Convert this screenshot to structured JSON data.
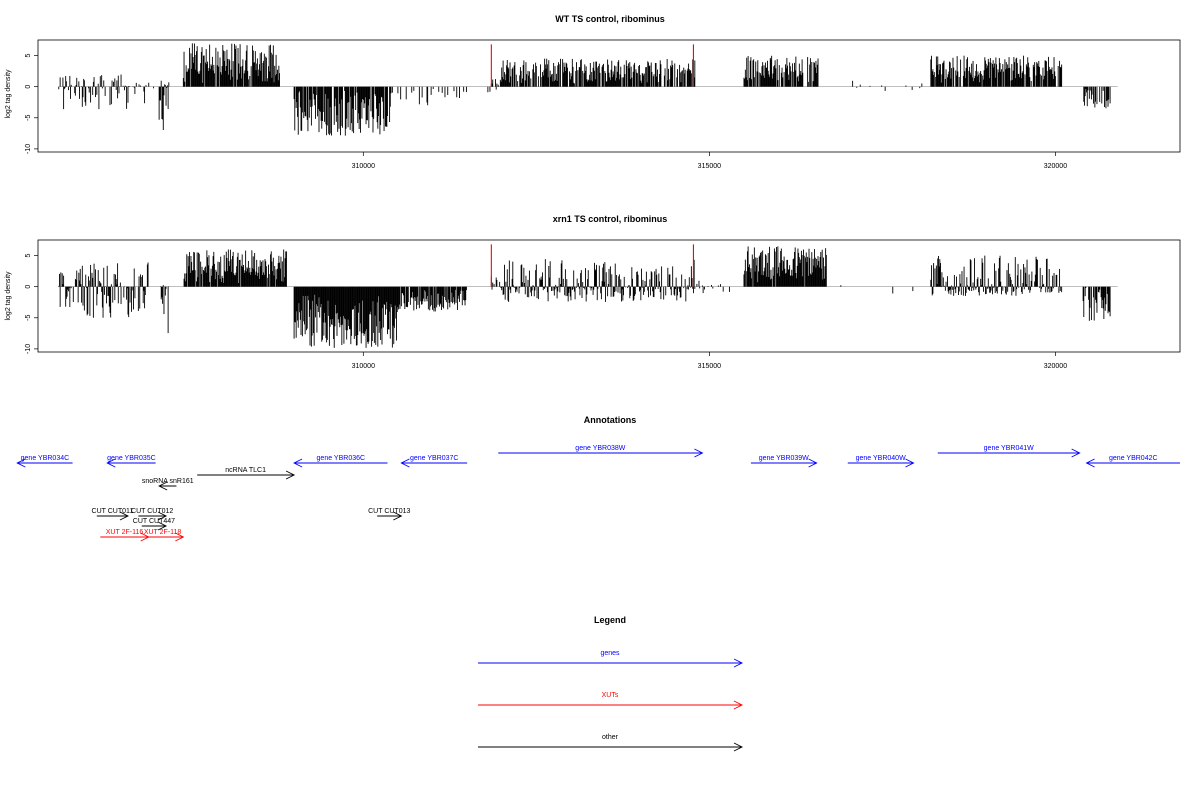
{
  "chart_data": [
    {
      "type": "bar",
      "title": "WT TS control, ribominus",
      "ylabel": "log2 tag density",
      "xlabel": "",
      "xlim": [
        305300,
        321800
      ],
      "ylim": [
        -10.5,
        7.5
      ],
      "xticks": [
        310000,
        315000,
        320000
      ],
      "yticks": [
        -10,
        -5,
        0,
        5
      ],
      "grid": false,
      "segments": [
        {
          "start": 305600,
          "end": 306600,
          "lo": -4.0,
          "hi": 2.0,
          "density": 0.55
        },
        {
          "start": 306600,
          "end": 307000,
          "lo": -3.0,
          "hi": 1.0,
          "density": 0.4
        },
        {
          "start": 307050,
          "end": 307200,
          "lo": -7.0,
          "hi": 1.0,
          "density": 0.8
        },
        {
          "start": 307400,
          "end": 308800,
          "lo": 0.5,
          "hi": 7.0,
          "density": 0.9
        },
        {
          "start": 309000,
          "end": 310400,
          "lo": -8.0,
          "hi": -0.5,
          "density": 0.9
        },
        {
          "start": 310400,
          "end": 311500,
          "lo": -3.0,
          "hi": 0.0,
          "density": 0.25
        },
        {
          "start": 311800,
          "end": 312000,
          "lo": -1.0,
          "hi": 1.5,
          "density": 0.5
        },
        {
          "start": 312000,
          "end": 314800,
          "lo": 0.5,
          "hi": 4.5,
          "density": 0.75
        },
        {
          "start": 315500,
          "end": 316600,
          "lo": 0.5,
          "hi": 5.0,
          "density": 0.75
        },
        {
          "start": 316600,
          "end": 318100,
          "lo": -1.0,
          "hi": 1.0,
          "density": 0.05
        },
        {
          "start": 318200,
          "end": 320100,
          "lo": 0.5,
          "hi": 5.0,
          "density": 0.85
        },
        {
          "start": 320400,
          "end": 320800,
          "lo": -3.5,
          "hi": 0.0,
          "density": 0.7
        }
      ],
      "red_markers": [
        {
          "x": 311850,
          "y": 6.8
        },
        {
          "x": 314770,
          "y": 6.8
        }
      ]
    },
    {
      "type": "bar",
      "title": "xrn1 TS control, ribominus",
      "ylabel": "log2 tag density",
      "xlabel": "",
      "xlim": [
        305300,
        321800
      ],
      "ylim": [
        -10.5,
        7.5
      ],
      "xticks": [
        310000,
        315000,
        320000
      ],
      "yticks": [
        -10,
        -5,
        0,
        5
      ],
      "grid": false,
      "segments": [
        {
          "start": 305600,
          "end": 306900,
          "lo": -5.0,
          "hi": 4.0,
          "density": 0.8
        },
        {
          "start": 307050,
          "end": 307200,
          "lo": -7.5,
          "hi": 1.0,
          "density": 0.8
        },
        {
          "start": 307400,
          "end": 308900,
          "lo": 0.5,
          "hi": 6.0,
          "density": 0.95
        },
        {
          "start": 309000,
          "end": 310500,
          "lo": -10.0,
          "hi": -1.0,
          "density": 1.0
        },
        {
          "start": 310500,
          "end": 311500,
          "lo": -4.0,
          "hi": -0.5,
          "density": 0.9
        },
        {
          "start": 311800,
          "end": 312000,
          "lo": -1.0,
          "hi": 2.0,
          "density": 0.5
        },
        {
          "start": 312000,
          "end": 314800,
          "lo": -2.5,
          "hi": 4.5,
          "density": 0.85
        },
        {
          "start": 314800,
          "end": 315300,
          "lo": -1.5,
          "hi": 1.0,
          "density": 0.2
        },
        {
          "start": 315500,
          "end": 316700,
          "lo": 0.5,
          "hi": 6.5,
          "density": 0.95
        },
        {
          "start": 316700,
          "end": 318100,
          "lo": -2.5,
          "hi": 1.0,
          "density": 0.05
        },
        {
          "start": 318200,
          "end": 320100,
          "lo": -1.5,
          "hi": 5.0,
          "density": 0.9
        },
        {
          "start": 320400,
          "end": 320800,
          "lo": -5.5,
          "hi": 0.0,
          "density": 0.8
        }
      ],
      "red_markers": [
        {
          "x": 311850,
          "y": 6.8
        },
        {
          "x": 314770,
          "y": 6.8
        }
      ]
    }
  ],
  "annotations": {
    "title": "Annotations",
    "features": [
      {
        "label": "gene YBR034C",
        "type": "gene",
        "start": 305000,
        "end": 305800,
        "strand": "-",
        "row": 0
      },
      {
        "label": "gene YBR035C",
        "type": "gene",
        "start": 306300,
        "end": 307000,
        "strand": "-",
        "row": 0
      },
      {
        "label": "ncRNA TLC1",
        "type": "other",
        "start": 307600,
        "end": 309000,
        "strand": "+",
        "row": 1
      },
      {
        "label": "snoRNA snR161",
        "type": "other",
        "start": 307050,
        "end": 307300,
        "strand": "-",
        "row": 2
      },
      {
        "label": "gene YBR036C",
        "type": "gene",
        "start": 309000,
        "end": 310350,
        "strand": "-",
        "row": 0
      },
      {
        "label": "gene YBR037C",
        "type": "gene",
        "start": 310550,
        "end": 311500,
        "strand": "-",
        "row": 0
      },
      {
        "label": "gene YBR038W",
        "type": "gene",
        "start": 311950,
        "end": 314900,
        "strand": "+",
        "row": -1
      },
      {
        "label": "gene YBR039W",
        "type": "gene",
        "start": 315600,
        "end": 316550,
        "strand": "+",
        "row": 0
      },
      {
        "label": "gene YBR040W",
        "type": "gene",
        "start": 317000,
        "end": 317950,
        "strand": "+",
        "row": 0
      },
      {
        "label": "gene YBR041W",
        "type": "gene",
        "start": 318300,
        "end": 320350,
        "strand": "+",
        "row": -1
      },
      {
        "label": "gene YBR042C",
        "type": "gene",
        "start": 320450,
        "end": 321800,
        "strand": "-",
        "row": 0
      },
      {
        "label": "CUT CUT011",
        "type": "other",
        "start": 306150,
        "end": 306600,
        "strand": "+",
        "row": 3
      },
      {
        "label": "CUT CUT012",
        "type": "other",
        "start": 306750,
        "end": 307150,
        "strand": "+",
        "row": 3
      },
      {
        "label": "CUT CUT447",
        "type": "other",
        "start": 306800,
        "end": 307150,
        "strand": "+",
        "row": 4
      },
      {
        "label": "CUT CUT013",
        "type": "other",
        "start": 310200,
        "end": 310550,
        "strand": "+",
        "row": 3
      },
      {
        "label": "XUT 2F-116",
        "type": "xut",
        "start": 306200,
        "end": 306900,
        "strand": "+",
        "row": 5
      },
      {
        "label": "XUT 2F-118",
        "type": "xut",
        "start": 306800,
        "end": 307400,
        "strand": "+",
        "row": 5
      }
    ]
  },
  "legend": {
    "title": "Legend",
    "items": [
      {
        "label": "genes",
        "color": "#0000ff"
      },
      {
        "label": "XUTs",
        "color": "#ff0000"
      },
      {
        "label": "other",
        "color": "#000000"
      }
    ]
  },
  "colors": {
    "gene": "#0000ff",
    "xut": "#ff0000",
    "other": "#000000",
    "bars": "#000000",
    "marker": "#ff0000",
    "baseline": "#999999"
  }
}
